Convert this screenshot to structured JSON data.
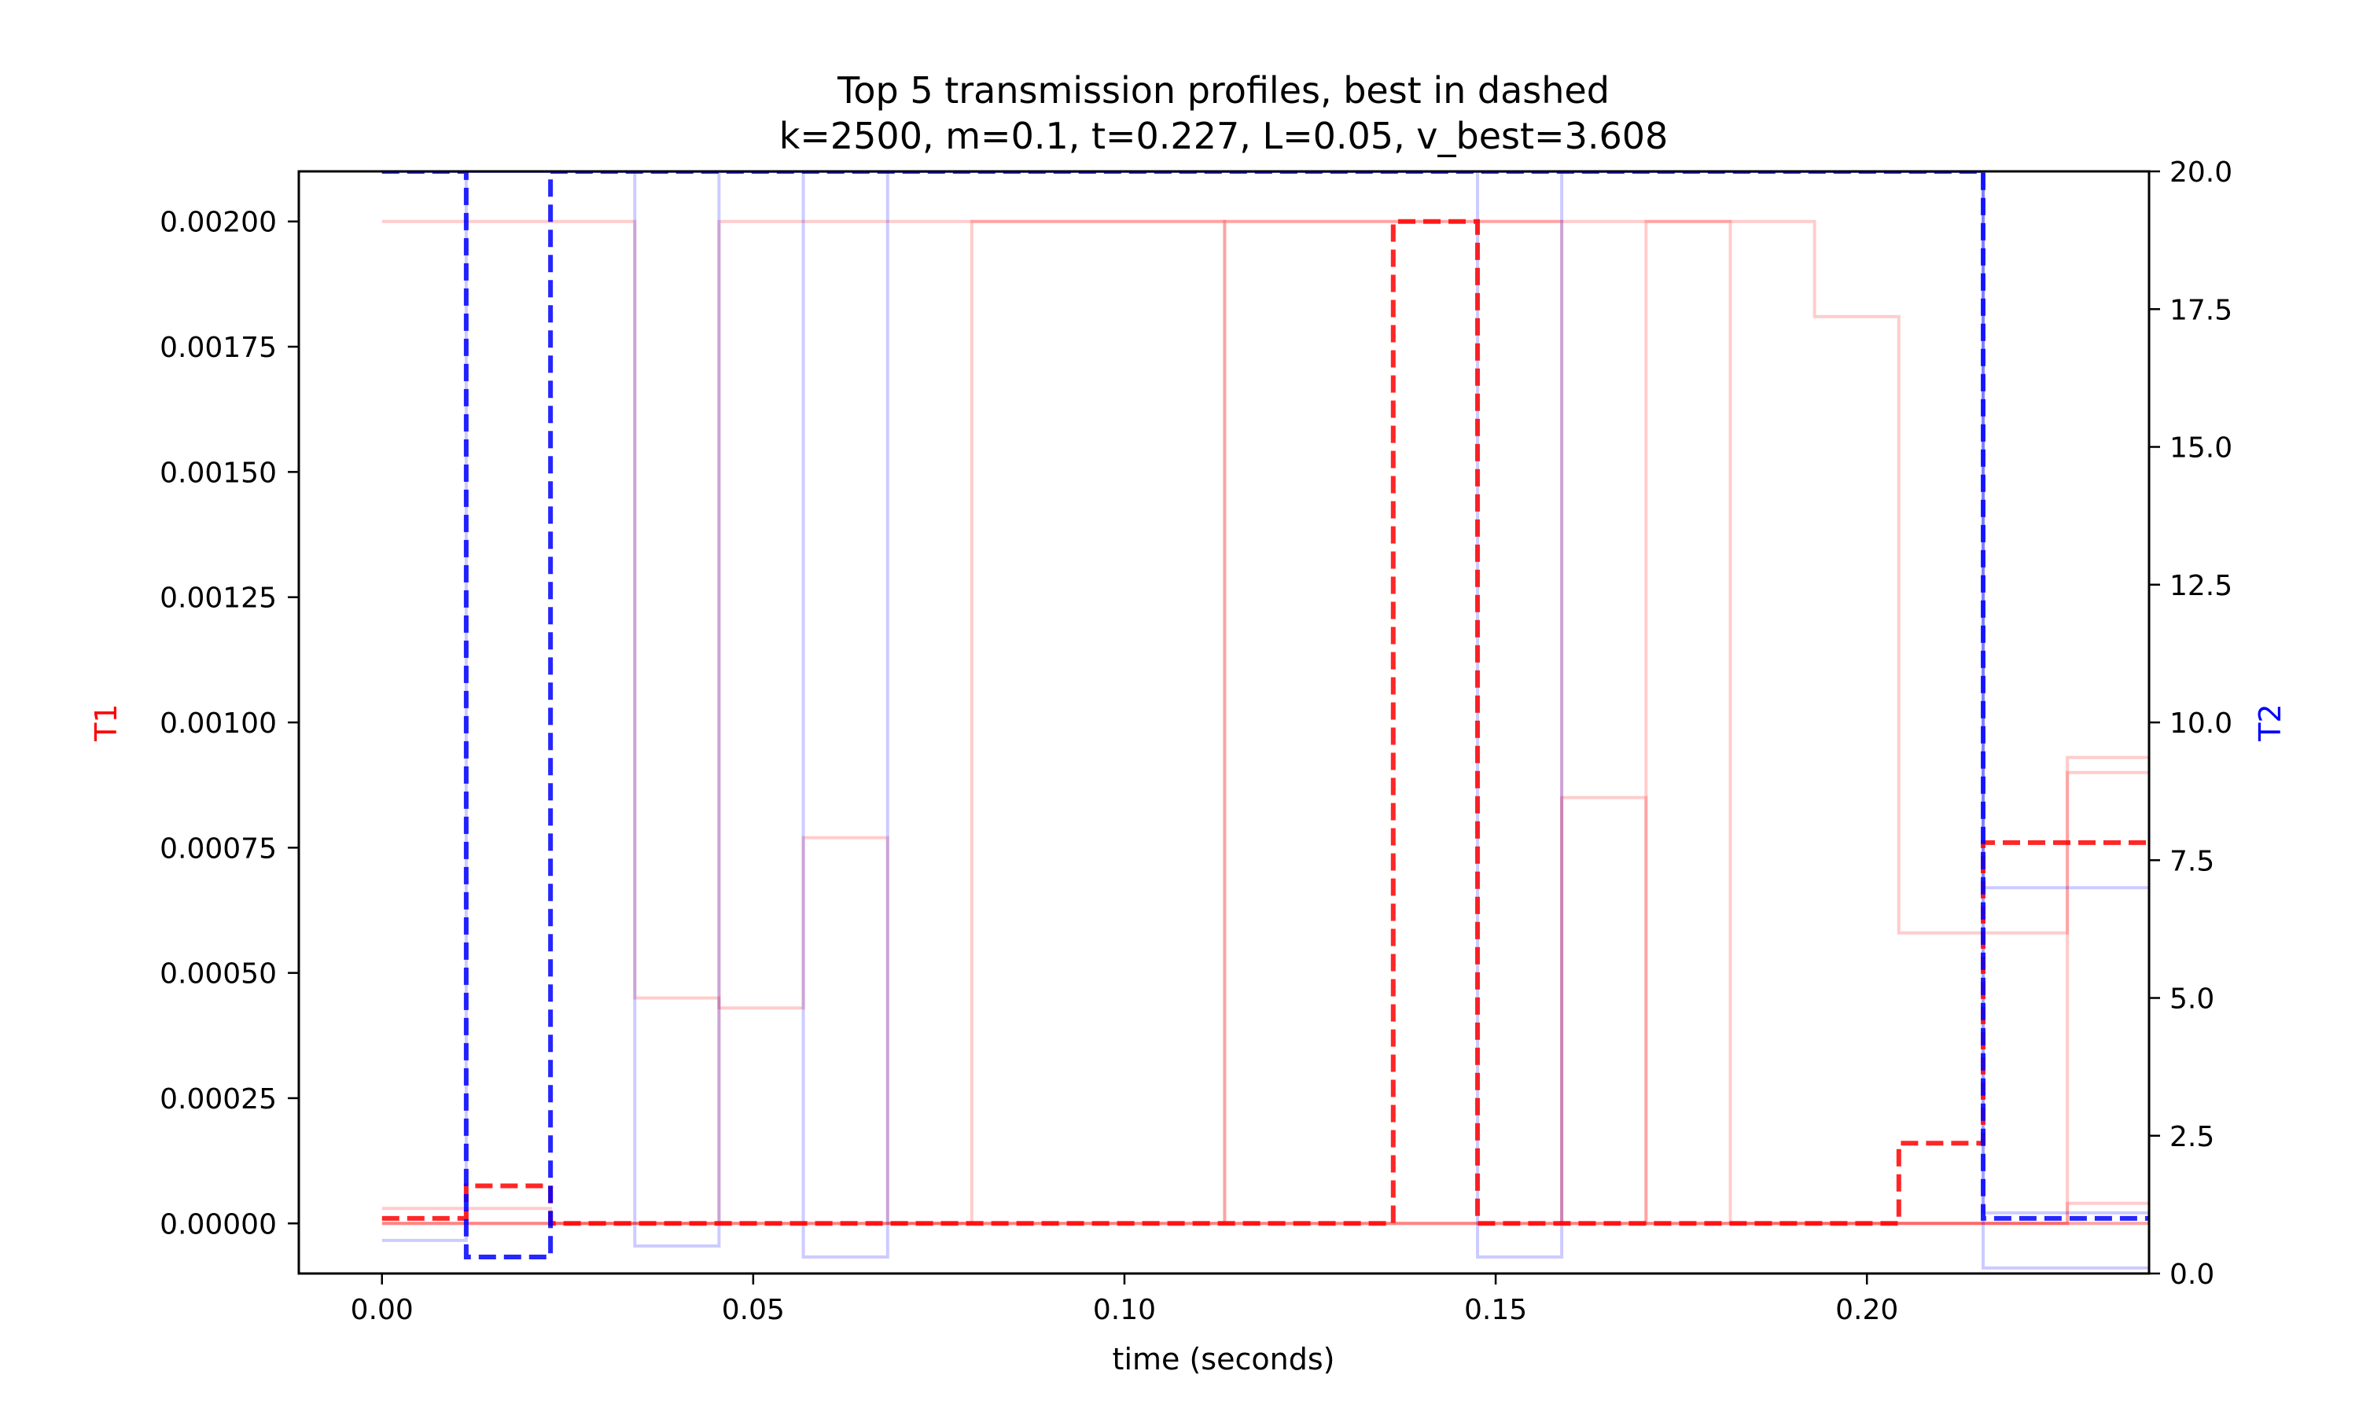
{
  "chart_data": {
    "type": "line",
    "step": "post",
    "title_line1": "Top 5 transmission profiles, best in dashed",
    "title_line2": "k=2500, m=0.1, t=0.227, L=0.05, v_best=3.608",
    "xlabel": "time (seconds)",
    "ylabel_left": "T1",
    "ylabel_right": "T2",
    "xlim": [
      -0.0112,
      0.238
    ],
    "ylim_left": [
      -0.0001,
      0.0021
    ],
    "ylim_right": [
      0.0,
      20.0
    ],
    "x_ticks": [
      0.0,
      0.05,
      0.1,
      0.15,
      0.2
    ],
    "x_tick_labels": [
      "0.00",
      "0.05",
      "0.10",
      "0.15",
      "0.20"
    ],
    "y_left_ticks": [
      0.0,
      0.00025,
      0.0005,
      0.00075,
      0.001,
      0.00125,
      0.0015,
      0.00175,
      0.002
    ],
    "y_left_tick_labels": [
      "0.00000",
      "0.00025",
      "0.00050",
      "0.00075",
      "0.00100",
      "0.00125",
      "0.00150",
      "0.00175",
      "0.00200"
    ],
    "y_right_ticks": [
      0.0,
      2.5,
      5.0,
      7.5,
      10.0,
      12.5,
      15.0,
      17.5,
      20.0
    ],
    "y_right_tick_labels": [
      "0.0",
      "2.5",
      "5.0",
      "7.5",
      "10.0",
      "12.5",
      "15.0",
      "17.5",
      "20.0"
    ],
    "colors": {
      "t1": "#ff0000",
      "t2": "#0000ff",
      "label_t1": "#ff0000",
      "label_t2": "#0000ff"
    },
    "time_grid": [
      0.0,
      0.01135,
      0.0227,
      0.03405,
      0.0454,
      0.05675,
      0.0681,
      0.07945,
      0.0908,
      0.10215,
      0.1135,
      0.12485,
      0.1362,
      0.14755,
      0.1589,
      0.17025,
      0.1816,
      0.19295,
      0.2043,
      0.21565,
      0.227
    ],
    "series": [
      {
        "name": "T1 profile 1",
        "axis": "left",
        "style": "faint",
        "values": [
          0.002,
          0.002,
          0.002,
          0.00045,
          0.00043,
          0.00077,
          0.0,
          0.0,
          0.0,
          0.0,
          0.0,
          0.0,
          0.0,
          0.0,
          0.00085,
          0.0,
          0.0,
          0.0,
          0.0,
          0.0,
          0.00093
        ]
      },
      {
        "name": "T1 profile 2",
        "axis": "left",
        "style": "faint",
        "values": [
          3e-05,
          3e-05,
          0.0,
          0.0,
          0.0,
          0.0,
          0.0,
          0.0,
          0.0,
          0.0,
          0.0,
          0.0,
          0.0,
          0.0,
          0.0,
          0.002,
          0.0,
          0.0,
          0.0,
          0.0,
          0.0
        ]
      },
      {
        "name": "T1 profile 3",
        "axis": "left",
        "style": "faint",
        "values": [
          0.0,
          0.0,
          0.0,
          0.0,
          0.002,
          0.002,
          0.002,
          0.002,
          0.002,
          0.002,
          0.002,
          0.002,
          0.002,
          0.002,
          0.002,
          0.002,
          0.002,
          0.00181,
          0.00058,
          0.00058,
          0.0009
        ]
      },
      {
        "name": "T1 profile 4",
        "axis": "left",
        "style": "faint",
        "values": [
          0.0,
          0.0,
          0.0,
          0.0,
          0.0,
          0.0,
          0.0,
          0.002,
          0.002,
          0.002,
          0.0,
          0.0,
          0.0,
          0.0,
          0.0,
          0.0,
          0.0,
          0.0,
          0.0,
          0.0,
          4e-05
        ]
      },
      {
        "name": "T1 profile 5",
        "axis": "left",
        "style": "faint",
        "values": [
          0.0,
          0.0,
          0.0,
          0.0,
          0.0,
          0.0,
          0.0,
          0.0,
          0.0,
          0.0,
          0.002,
          0.002,
          0.002,
          0.002,
          0.0,
          0.0,
          0.0,
          0.0,
          0.0,
          0.0,
          0.0
        ]
      },
      {
        "name": "T1 best",
        "axis": "left",
        "style": "best",
        "values": [
          1e-05,
          7.5e-05,
          0.0,
          0.0,
          0.0,
          0.0,
          0.0,
          0.0,
          0.0,
          0.0,
          0.0,
          0.0,
          0.002,
          0.0,
          0.0,
          0.0,
          0.0,
          0.0,
          0.00016,
          0.00076,
          0.00076
        ]
      },
      {
        "name": "T2 profile 1",
        "axis": "right",
        "style": "faint",
        "values": [
          0.6,
          20.0,
          20.0,
          0.5,
          20.0,
          0.3,
          20.0,
          20.0,
          20.0,
          20.0,
          20.0,
          20.0,
          20.0,
          0.3,
          20.0,
          20.0,
          20.0,
          20.0,
          20.0,
          0.1,
          0.1
        ]
      },
      {
        "name": "T2 profile 2",
        "axis": "right",
        "style": "faint",
        "values": [
          20.0,
          20.0,
          20.0,
          20.0,
          20.0,
          20.0,
          20.0,
          20.0,
          20.0,
          20.0,
          20.0,
          20.0,
          20.0,
          20.0,
          20.0,
          20.0,
          20.0,
          20.0,
          20.0,
          7.0,
          7.0
        ]
      },
      {
        "name": "T2 profile 3",
        "axis": "right",
        "style": "faint",
        "values": [
          20.0,
          20.0,
          20.0,
          20.0,
          20.0,
          20.0,
          20.0,
          20.0,
          20.0,
          20.0,
          20.0,
          20.0,
          20.0,
          20.0,
          20.0,
          20.0,
          20.0,
          20.0,
          20.0,
          1.1,
          1.1
        ]
      },
      {
        "name": "T2 best",
        "axis": "right",
        "style": "best",
        "values": [
          20.0,
          0.3,
          20.0,
          20.0,
          20.0,
          20.0,
          20.0,
          20.0,
          20.0,
          20.0,
          20.0,
          20.0,
          20.0,
          20.0,
          20.0,
          20.0,
          20.0,
          20.0,
          20.0,
          1.0,
          1.0
        ]
      }
    ]
  }
}
